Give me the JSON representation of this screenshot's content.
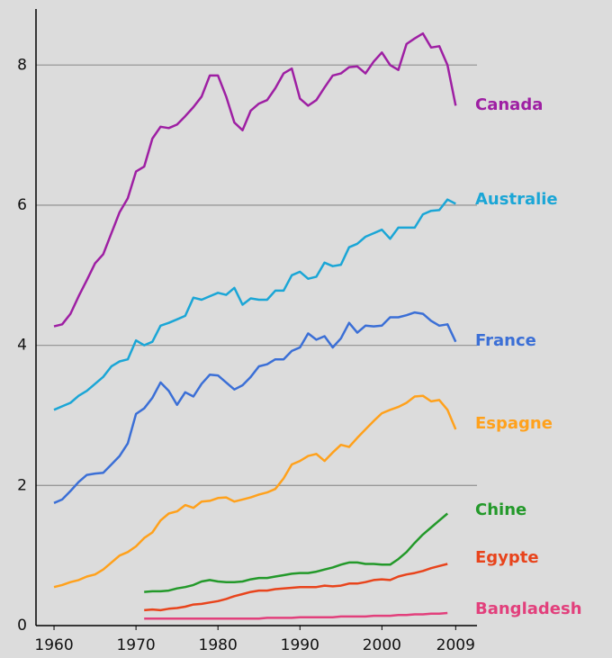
{
  "chart_data": {
    "type": "line",
    "x": [
      1960,
      1961,
      1962,
      1963,
      1964,
      1965,
      1966,
      1967,
      1968,
      1969,
      1970,
      1971,
      1972,
      1973,
      1974,
      1975,
      1976,
      1977,
      1978,
      1979,
      1980,
      1981,
      1982,
      1983,
      1984,
      1985,
      1986,
      1987,
      1988,
      1989,
      1990,
      1991,
      1992,
      1993,
      1994,
      1995,
      1996,
      1997,
      1998,
      1999,
      2000,
      2001,
      2002,
      2003,
      2004,
      2005,
      2006,
      2007,
      2008,
      2009
    ],
    "xlim": [
      1957.8,
      2011.6
    ],
    "xticks": [
      1960,
      1970,
      1980,
      1990,
      2000,
      2009
    ],
    "ylim": [
      0,
      8.8
    ],
    "yticks": [
      0,
      2,
      4,
      6,
      8
    ],
    "grid": true,
    "series": [
      {
        "name": "Canada",
        "color": "#9e1fa3",
        "values": [
          4.27,
          4.3,
          4.45,
          4.7,
          4.93,
          5.17,
          5.3,
          5.6,
          5.9,
          6.1,
          6.48,
          6.55,
          6.95,
          7.12,
          7.1,
          7.15,
          7.27,
          7.4,
          7.55,
          7.85,
          7.85,
          7.55,
          7.18,
          7.07,
          7.35,
          7.45,
          7.5,
          7.67,
          7.88,
          7.95,
          7.52,
          7.42,
          7.5,
          7.68,
          7.85,
          7.88,
          7.97,
          7.98,
          7.88,
          8.05,
          8.18,
          8.0,
          7.93,
          8.3,
          8.38,
          8.45,
          8.25,
          8.27,
          8.0,
          7.42
        ]
      },
      {
        "name": "Australie",
        "color": "#1ba6d6",
        "values": [
          3.08,
          3.13,
          3.18,
          3.28,
          3.35,
          3.45,
          3.55,
          3.7,
          3.77,
          3.8,
          4.07,
          4.0,
          4.05,
          4.28,
          4.32,
          4.37,
          4.42,
          4.68,
          4.65,
          4.7,
          4.75,
          4.72,
          4.82,
          4.58,
          4.67,
          4.65,
          4.65,
          4.78,
          4.78,
          5.0,
          5.05,
          4.95,
          4.98,
          5.18,
          5.13,
          5.15,
          5.4,
          5.45,
          5.55,
          5.6,
          5.65,
          5.52,
          5.68,
          5.68,
          5.68,
          5.87,
          5.92,
          5.93,
          6.08,
          6.02
        ]
      },
      {
        "name": "France",
        "color": "#3b6fd6",
        "values": [
          1.75,
          1.8,
          1.92,
          2.05,
          2.15,
          2.17,
          2.18,
          2.3,
          2.42,
          2.6,
          3.02,
          3.1,
          3.25,
          3.47,
          3.35,
          3.15,
          3.33,
          3.27,
          3.45,
          3.58,
          3.57,
          3.47,
          3.37,
          3.43,
          3.55,
          3.7,
          3.73,
          3.8,
          3.8,
          3.92,
          3.97,
          4.17,
          4.08,
          4.13,
          3.97,
          4.1,
          4.32,
          4.18,
          4.28,
          4.27,
          4.28,
          4.4,
          4.4,
          4.43,
          4.47,
          4.45,
          4.35,
          4.28,
          4.3,
          4.05
        ]
      },
      {
        "name": "Espagne",
        "color": "#ffa11c",
        "values": [
          0.55,
          0.58,
          0.62,
          0.65,
          0.7,
          0.73,
          0.8,
          0.9,
          1.0,
          1.05,
          1.13,
          1.25,
          1.33,
          1.5,
          1.6,
          1.63,
          1.72,
          1.68,
          1.77,
          1.78,
          1.82,
          1.83,
          1.77,
          1.8,
          1.83,
          1.87,
          1.9,
          1.95,
          2.1,
          2.3,
          2.35,
          2.42,
          2.45,
          2.35,
          2.47,
          2.58,
          2.55,
          2.68,
          2.8,
          2.92,
          3.03,
          3.08,
          3.12,
          3.18,
          3.27,
          3.28,
          3.2,
          3.22,
          3.08,
          2.8
        ]
      },
      {
        "name": "Chine",
        "color": "#23992a",
        "values": [
          null,
          null,
          null,
          null,
          null,
          null,
          null,
          null,
          null,
          null,
          null,
          0.48,
          0.49,
          0.49,
          0.5,
          0.53,
          0.55,
          0.58,
          0.63,
          0.65,
          0.63,
          0.62,
          0.62,
          0.63,
          0.66,
          0.68,
          0.68,
          0.7,
          0.72,
          0.74,
          0.75,
          0.75,
          0.77,
          0.8,
          0.83,
          0.87,
          0.9,
          0.9,
          0.88,
          0.88,
          0.87,
          0.87,
          0.95,
          1.05,
          1.18,
          1.3,
          1.4,
          1.5,
          1.6,
          null
        ]
      },
      {
        "name": "Egypte",
        "color": "#e8441c",
        "values": [
          null,
          null,
          null,
          null,
          null,
          null,
          null,
          null,
          null,
          null,
          null,
          0.22,
          0.23,
          0.22,
          0.24,
          0.25,
          0.27,
          0.3,
          0.31,
          0.33,
          0.35,
          0.38,
          0.42,
          0.45,
          0.48,
          0.5,
          0.5,
          0.52,
          0.53,
          0.54,
          0.55,
          0.55,
          0.55,
          0.57,
          0.56,
          0.57,
          0.6,
          0.6,
          0.62,
          0.65,
          0.66,
          0.65,
          0.7,
          0.73,
          0.75,
          0.78,
          0.82,
          0.85,
          0.88,
          null
        ]
      },
      {
        "name": "Bangladesh",
        "color": "#e2407c",
        "values": [
          null,
          null,
          null,
          null,
          null,
          null,
          null,
          null,
          null,
          null,
          null,
          0.1,
          0.1,
          0.1,
          0.1,
          0.1,
          0.1,
          0.1,
          0.1,
          0.1,
          0.1,
          0.1,
          0.1,
          0.1,
          0.1,
          0.1,
          0.11,
          0.11,
          0.11,
          0.11,
          0.12,
          0.12,
          0.12,
          0.12,
          0.12,
          0.13,
          0.13,
          0.13,
          0.13,
          0.14,
          0.14,
          0.14,
          0.15,
          0.15,
          0.16,
          0.16,
          0.17,
          0.17,
          0.18,
          null
        ]
      }
    ]
  }
}
